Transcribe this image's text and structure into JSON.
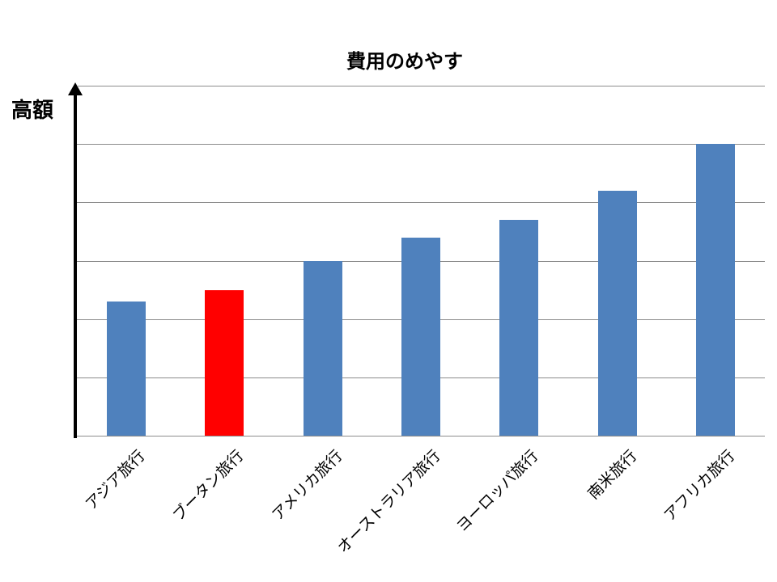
{
  "chart_data": {
    "type": "bar",
    "title": "費用のめやす",
    "xlabel": "",
    "ylabel": "高額",
    "categories": [
      "アジア旅行",
      "ブータン旅行",
      "アメリカ旅行",
      "オーストラリア旅行",
      "ヨーロッパ旅行",
      "南米旅行",
      "アフリカ旅行"
    ],
    "values": [
      2.3,
      2.5,
      3.0,
      3.4,
      3.7,
      4.2,
      5.0
    ],
    "highlight_index": 1,
    "colors": {
      "default": "#4f81bd",
      "highlight": "#ff0000",
      "grid": "#8c8c8c",
      "axis": "#000000"
    },
    "ylim": [
      0,
      6
    ],
    "grid": true,
    "y_tick_labels": false,
    "legend": "none"
  }
}
